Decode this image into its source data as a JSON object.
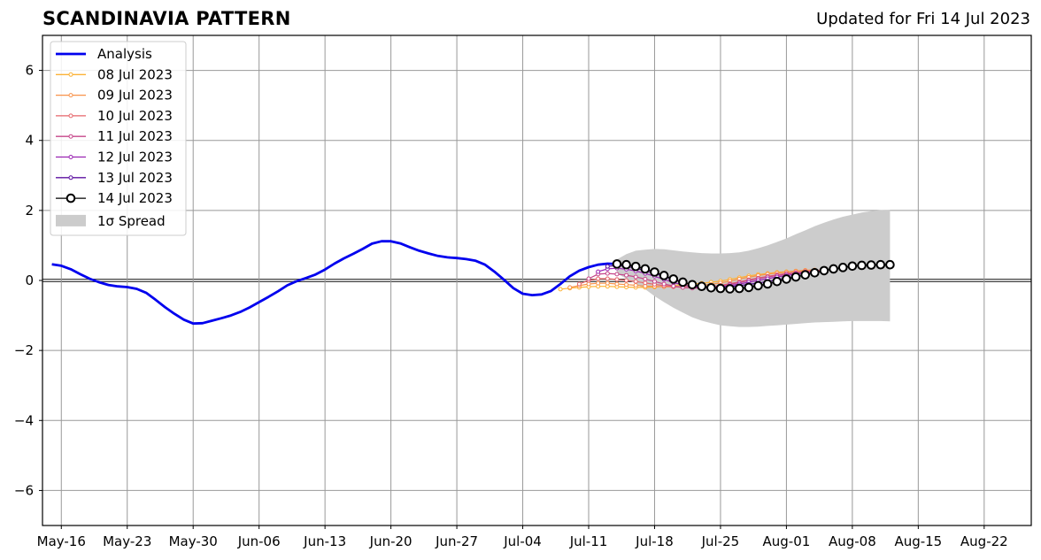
{
  "chart_data": {
    "type": "line",
    "title": "SCANDINAVIA PATTERN",
    "subtitle": "Updated for Fri 14 Jul 2023",
    "xlabel": "",
    "ylabel": "",
    "ylim": [
      -7,
      7
    ],
    "xlim": [
      "2023-05-14",
      "2023-08-27"
    ],
    "yticks": [
      -6,
      -4,
      -2,
      0,
      2,
      4,
      6
    ],
    "ytick_labels": [
      "−6",
      "−4",
      "−2",
      "0",
      "2",
      "4",
      "6"
    ],
    "xticks": [
      "2023-05-16",
      "2023-05-23",
      "2023-05-30",
      "2023-06-06",
      "2023-06-13",
      "2023-06-20",
      "2023-06-27",
      "2023-07-04",
      "2023-07-11",
      "2023-07-18",
      "2023-07-25",
      "2023-08-01",
      "2023-08-08",
      "2023-08-15",
      "2023-08-22"
    ],
    "xtick_labels": [
      "May-16",
      "May-23",
      "May-30",
      "Jun-06",
      "Jun-13",
      "Jun-20",
      "Jun-27",
      "Jul-04",
      "Jul-11",
      "Jul-18",
      "Jul-25",
      "Aug-01",
      "Aug-08",
      "Aug-15",
      "Aug-22"
    ],
    "grid": true,
    "legend_position": "top-left",
    "colors": {
      "analysis": "#0000ee",
      "jul08": "#fcb236",
      "jul09": "#f8924a",
      "jul10": "#e6656a",
      "jul11": "#c6468a",
      "jul12": "#9a24b2",
      "jul13": "#5d11a0",
      "jul14": "#000000",
      "spread": "#cccccc",
      "grid": "#999999"
    },
    "analysis": {
      "name": "Analysis",
      "x": [
        "2023-05-15",
        "2023-05-16",
        "2023-05-17",
        "2023-05-18",
        "2023-05-19",
        "2023-05-20",
        "2023-05-21",
        "2023-05-22",
        "2023-05-23",
        "2023-05-24",
        "2023-05-25",
        "2023-05-26",
        "2023-05-27",
        "2023-05-28",
        "2023-05-29",
        "2023-05-30",
        "2023-05-31",
        "2023-06-01",
        "2023-06-02",
        "2023-06-03",
        "2023-06-04",
        "2023-06-05",
        "2023-06-06",
        "2023-06-07",
        "2023-06-08",
        "2023-06-09",
        "2023-06-10",
        "2023-06-11",
        "2023-06-12",
        "2023-06-13",
        "2023-06-14",
        "2023-06-15",
        "2023-06-16",
        "2023-06-17",
        "2023-06-18",
        "2023-06-19",
        "2023-06-20",
        "2023-06-21",
        "2023-06-22",
        "2023-06-23",
        "2023-06-24",
        "2023-06-25",
        "2023-06-26",
        "2023-06-27",
        "2023-06-28",
        "2023-06-29",
        "2023-06-30",
        "2023-07-01",
        "2023-07-02",
        "2023-07-03",
        "2023-07-04",
        "2023-07-05",
        "2023-07-06",
        "2023-07-07",
        "2023-07-08",
        "2023-07-09",
        "2023-07-10",
        "2023-07-11",
        "2023-07-12",
        "2023-07-13",
        "2023-07-14"
      ],
      "y": [
        0.46,
        0.42,
        0.32,
        0.18,
        0.05,
        -0.05,
        -0.13,
        -0.17,
        -0.19,
        -0.24,
        -0.35,
        -0.55,
        -0.76,
        -0.95,
        -1.12,
        -1.23,
        -1.22,
        -1.15,
        -1.08,
        -1.0,
        -0.9,
        -0.77,
        -0.62,
        -0.47,
        -0.31,
        -0.14,
        -0.02,
        0.07,
        0.17,
        0.31,
        0.48,
        0.63,
        0.76,
        0.9,
        1.05,
        1.12,
        1.12,
        1.06,
        0.95,
        0.85,
        0.77,
        0.7,
        0.66,
        0.64,
        0.61,
        0.56,
        0.45,
        0.25,
        0.02,
        -0.22,
        -0.38,
        -0.42,
        -0.4,
        -0.3,
        -0.1,
        0.12,
        0.28,
        0.38,
        0.45,
        0.48,
        0.47
      ]
    },
    "series": [
      {
        "name": "08 Jul 2023",
        "color": "#fcb236",
        "x": [
          "2023-07-08",
          "2023-07-09",
          "2023-07-10",
          "2023-07-11",
          "2023-07-12",
          "2023-07-13",
          "2023-07-14",
          "2023-07-15",
          "2023-07-16",
          "2023-07-17",
          "2023-07-18",
          "2023-07-19",
          "2023-07-20",
          "2023-07-21",
          "2023-07-22",
          "2023-07-23",
          "2023-07-24",
          "2023-07-25",
          "2023-07-26",
          "2023-07-27",
          "2023-07-28",
          "2023-07-29",
          "2023-07-30",
          "2023-07-31",
          "2023-08-01",
          "2023-08-02",
          "2023-08-03"
        ],
        "y": [
          -0.25,
          -0.22,
          -0.2,
          -0.18,
          -0.17,
          -0.17,
          -0.18,
          -0.19,
          -0.2,
          -0.2,
          -0.19,
          -0.17,
          -0.15,
          -0.12,
          -0.1,
          -0.08,
          -0.05,
          -0.02,
          0.03,
          0.08,
          0.13,
          0.17,
          0.2,
          0.23,
          0.25,
          0.27,
          0.28
        ]
      },
      {
        "name": "09 Jul 2023",
        "color": "#f8924a",
        "x": [
          "2023-07-09",
          "2023-07-10",
          "2023-07-11",
          "2023-07-12",
          "2023-07-13",
          "2023-07-14",
          "2023-07-15",
          "2023-07-16",
          "2023-07-17",
          "2023-07-18",
          "2023-07-19",
          "2023-07-20",
          "2023-07-21",
          "2023-07-22",
          "2023-07-23",
          "2023-07-24",
          "2023-07-25",
          "2023-07-26",
          "2023-07-27",
          "2023-07-28",
          "2023-07-29",
          "2023-07-30",
          "2023-07-31",
          "2023-08-01",
          "2023-08-02",
          "2023-08-03",
          "2023-08-04"
        ],
        "y": [
          -0.2,
          -0.15,
          -0.1,
          -0.08,
          -0.08,
          -0.1,
          -0.12,
          -0.14,
          -0.16,
          -0.17,
          -0.18,
          -0.18,
          -0.17,
          -0.16,
          -0.14,
          -0.11,
          -0.07,
          -0.02,
          0.04,
          0.09,
          0.14,
          0.18,
          0.21,
          0.24,
          0.27,
          0.29,
          0.3
        ]
      },
      {
        "name": "10 Jul 2023",
        "color": "#e6656a",
        "x": [
          "2023-07-10",
          "2023-07-11",
          "2023-07-12",
          "2023-07-13",
          "2023-07-14",
          "2023-07-15",
          "2023-07-16",
          "2023-07-17",
          "2023-07-18",
          "2023-07-19",
          "2023-07-20",
          "2023-07-21",
          "2023-07-22",
          "2023-07-23",
          "2023-07-24",
          "2023-07-25",
          "2023-07-26",
          "2023-07-27",
          "2023-07-28",
          "2023-07-29",
          "2023-07-30",
          "2023-07-31",
          "2023-08-01",
          "2023-08-02",
          "2023-08-03",
          "2023-08-04",
          "2023-08-05"
        ],
        "y": [
          -0.1,
          0.0,
          0.05,
          0.05,
          0.03,
          0.0,
          -0.03,
          -0.07,
          -0.11,
          -0.15,
          -0.18,
          -0.2,
          -0.21,
          -0.2,
          -0.18,
          -0.14,
          -0.09,
          -0.04,
          0.02,
          0.07,
          0.12,
          0.16,
          0.2,
          0.23,
          0.26,
          0.28,
          0.3
        ]
      },
      {
        "name": "11 Jul 2023",
        "color": "#c6468a",
        "x": [
          "2023-07-11",
          "2023-07-12",
          "2023-07-13",
          "2023-07-14",
          "2023-07-15",
          "2023-07-16",
          "2023-07-17",
          "2023-07-18",
          "2023-07-19",
          "2023-07-20",
          "2023-07-21",
          "2023-07-22",
          "2023-07-23",
          "2023-07-24",
          "2023-07-25",
          "2023-07-26",
          "2023-07-27",
          "2023-07-28",
          "2023-07-29",
          "2023-07-30",
          "2023-07-31",
          "2023-08-01",
          "2023-08-02",
          "2023-08-03",
          "2023-08-04",
          "2023-08-05"
        ],
        "y": [
          0.05,
          0.18,
          0.2,
          0.18,
          0.15,
          0.1,
          0.04,
          -0.03,
          -0.1,
          -0.16,
          -0.2,
          -0.22,
          -0.22,
          -0.2,
          -0.16,
          -0.11,
          -0.06,
          0.0,
          0.05,
          0.1,
          0.14,
          0.18,
          0.21,
          0.24,
          0.26,
          0.28
        ]
      },
      {
        "name": "12 Jul 2023",
        "color": "#9a24b2",
        "x": [
          "2023-07-12",
          "2023-07-13",
          "2023-07-14",
          "2023-07-15",
          "2023-07-16",
          "2023-07-17",
          "2023-07-18",
          "2023-07-19",
          "2023-07-20",
          "2023-07-21",
          "2023-07-22",
          "2023-07-23",
          "2023-07-24",
          "2023-07-25",
          "2023-07-26",
          "2023-07-27",
          "2023-07-28",
          "2023-07-29",
          "2023-07-30",
          "2023-07-31",
          "2023-08-01",
          "2023-08-02",
          "2023-08-03",
          "2023-08-04"
        ],
        "y": [
          0.25,
          0.33,
          0.35,
          0.32,
          0.27,
          0.2,
          0.12,
          0.03,
          -0.06,
          -0.13,
          -0.18,
          -0.21,
          -0.21,
          -0.19,
          -0.15,
          -0.1,
          -0.05,
          0.0,
          0.05,
          0.1,
          0.14,
          0.18,
          0.21,
          0.24
        ]
      },
      {
        "name": "13 Jul 2023",
        "color": "#5d11a0",
        "x": [
          "2023-07-13",
          "2023-07-14",
          "2023-07-15",
          "2023-07-16",
          "2023-07-17",
          "2023-07-18",
          "2023-07-19",
          "2023-07-20",
          "2023-07-21",
          "2023-07-22",
          "2023-07-23",
          "2023-07-24",
          "2023-07-25",
          "2023-07-26",
          "2023-07-27",
          "2023-07-28",
          "2023-07-29",
          "2023-07-30",
          "2023-07-31",
          "2023-08-01",
          "2023-08-02"
        ],
        "y": [
          0.4,
          0.43,
          0.4,
          0.35,
          0.28,
          0.2,
          0.11,
          0.02,
          -0.06,
          -0.13,
          -0.18,
          -0.2,
          -0.2,
          -0.18,
          -0.15,
          -0.11,
          -0.07,
          -0.03,
          0.02,
          0.07,
          0.12
        ]
      },
      {
        "name": "14 Jul 2023",
        "color": "#000000",
        "marker": "circle",
        "x": [
          "2023-07-14",
          "2023-07-15",
          "2023-07-16",
          "2023-07-17",
          "2023-07-18",
          "2023-07-19",
          "2023-07-20",
          "2023-07-21",
          "2023-07-22",
          "2023-07-23",
          "2023-07-24",
          "2023-07-25",
          "2023-07-26",
          "2023-07-27",
          "2023-07-28",
          "2023-07-29",
          "2023-07-30",
          "2023-07-31",
          "2023-08-01",
          "2023-08-02",
          "2023-08-03",
          "2023-08-04",
          "2023-08-05",
          "2023-08-06",
          "2023-08-07",
          "2023-08-08",
          "2023-08-09",
          "2023-08-10",
          "2023-08-11",
          "2023-08-12"
        ],
        "y": [
          0.47,
          0.45,
          0.4,
          0.33,
          0.24,
          0.14,
          0.04,
          -0.05,
          -0.12,
          -0.17,
          -0.21,
          -0.23,
          -0.24,
          -0.23,
          -0.2,
          -0.15,
          -0.1,
          -0.03,
          0.04,
          0.1,
          0.16,
          0.22,
          0.28,
          0.33,
          0.37,
          0.41,
          0.43,
          0.44,
          0.45,
          0.45
        ]
      }
    ],
    "spread": {
      "name": "1σ Spread",
      "x": [
        "2023-07-14",
        "2023-07-15",
        "2023-07-16",
        "2023-07-17",
        "2023-07-18",
        "2023-07-19",
        "2023-07-20",
        "2023-07-21",
        "2023-07-22",
        "2023-07-23",
        "2023-07-24",
        "2023-07-25",
        "2023-07-26",
        "2023-07-27",
        "2023-07-28",
        "2023-07-29",
        "2023-07-30",
        "2023-07-31",
        "2023-08-01",
        "2023-08-02",
        "2023-08-03",
        "2023-08-04",
        "2023-08-05",
        "2023-08-06",
        "2023-08-07",
        "2023-08-08",
        "2023-08-09",
        "2023-08-10",
        "2023-08-11",
        "2023-08-12"
      ],
      "upper": [
        0.6,
        0.75,
        0.85,
        0.88,
        0.9,
        0.89,
        0.86,
        0.83,
        0.8,
        0.78,
        0.77,
        0.77,
        0.78,
        0.8,
        0.85,
        0.92,
        1.0,
        1.1,
        1.2,
        1.32,
        1.43,
        1.55,
        1.65,
        1.74,
        1.82,
        1.88,
        1.94,
        1.98,
        2.01,
        2.02
      ],
      "lower": [
        0.2,
        0.05,
        -0.1,
        -0.25,
        -0.45,
        -0.62,
        -0.78,
        -0.92,
        -1.05,
        -1.15,
        -1.22,
        -1.28,
        -1.31,
        -1.33,
        -1.33,
        -1.32,
        -1.3,
        -1.28,
        -1.26,
        -1.24,
        -1.22,
        -1.2,
        -1.19,
        -1.18,
        -1.17,
        -1.16,
        -1.16,
        -1.16,
        -1.16,
        -1.17
      ]
    }
  }
}
